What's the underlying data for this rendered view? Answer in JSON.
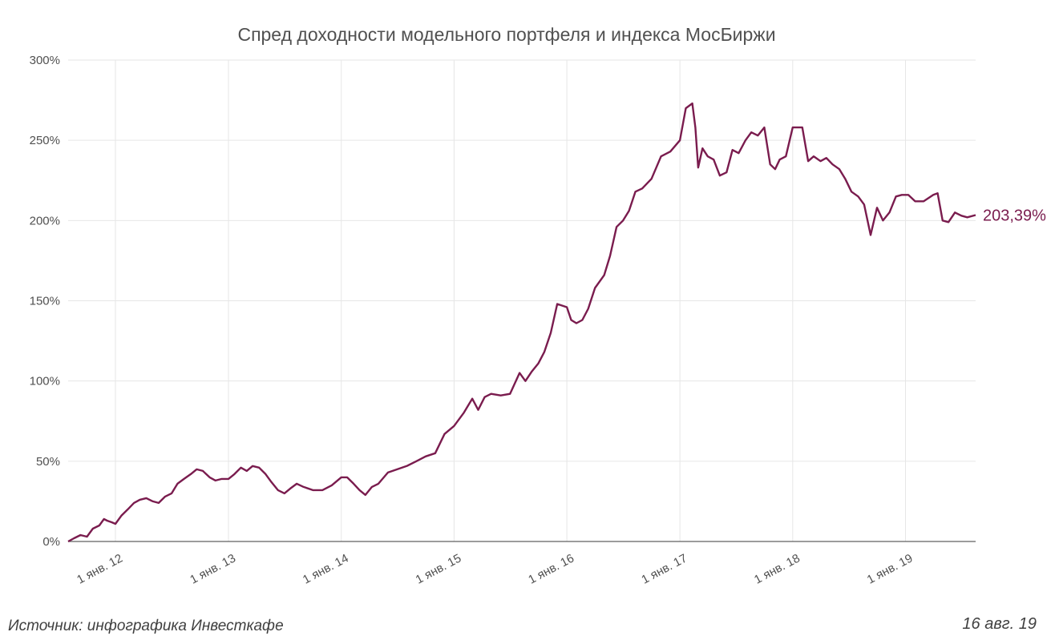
{
  "chart_data": {
    "type": "line",
    "title": "Спред доходности модельного портфеля и индекса МосБиржи",
    "xlabel": "",
    "ylabel": "",
    "x_range": [
      "2011-08-01",
      "2019-08-16"
    ],
    "ylim": [
      0,
      300
    ],
    "y_ticks": [
      0,
      50,
      100,
      150,
      200,
      250,
      300
    ],
    "y_tick_labels": [
      "0%",
      "50%",
      "100%",
      "150%",
      "200%",
      "250%",
      "300%"
    ],
    "x_ticks": [
      "2012-01-01",
      "2013-01-01",
      "2014-01-01",
      "2015-01-01",
      "2016-01-01",
      "2017-01-01",
      "2018-01-01",
      "2019-01-01"
    ],
    "x_tick_labels": [
      "1 янв. 12",
      "1 янв. 13",
      "1 янв. 14",
      "1 янв. 15",
      "1 янв. 16",
      "1 янв. 17",
      "1 янв. 18",
      "1 янв. 19"
    ],
    "grid": true,
    "series_color": "#7a1c4e",
    "last_value_label": "203,39%",
    "series": [
      {
        "x": [
          "2011-08-01",
          "2011-08-20",
          "2011-09-10",
          "2011-10-01",
          "2011-10-20",
          "2011-11-10",
          "2011-11-25",
          "2011-12-05",
          "2011-12-20",
          "2012-01-01",
          "2012-01-20",
          "2012-02-10",
          "2012-03-01",
          "2012-03-20",
          "2012-04-10",
          "2012-05-01",
          "2012-05-20",
          "2012-06-10",
          "2012-07-01",
          "2012-07-20",
          "2012-08-10",
          "2012-09-01",
          "2012-09-20",
          "2012-10-10",
          "2012-11-01",
          "2012-11-20",
          "2012-12-10",
          "2013-01-01",
          "2013-01-20",
          "2013-02-10",
          "2013-03-01",
          "2013-03-20",
          "2013-04-10",
          "2013-05-01",
          "2013-05-20",
          "2013-06-10",
          "2013-07-01",
          "2013-07-20",
          "2013-08-10",
          "2013-09-01",
          "2013-10-01",
          "2013-11-01",
          "2013-12-01",
          "2014-01-01",
          "2014-01-20",
          "2014-02-10",
          "2014-03-01",
          "2014-03-20",
          "2014-04-10",
          "2014-05-01",
          "2014-06-01",
          "2014-07-01",
          "2014-08-01",
          "2014-09-01",
          "2014-10-01",
          "2014-11-01",
          "2014-12-01",
          "2015-01-01",
          "2015-02-01",
          "2015-03-01",
          "2015-03-20",
          "2015-04-10",
          "2015-05-01",
          "2015-06-01",
          "2015-07-01",
          "2015-08-01",
          "2015-08-20",
          "2015-09-10",
          "2015-10-01",
          "2015-10-20",
          "2015-11-10",
          "2015-12-01",
          "2016-01-01",
          "2016-01-15",
          "2016-02-01",
          "2016-02-20",
          "2016-03-10",
          "2016-04-01",
          "2016-05-01",
          "2016-05-20",
          "2016-06-10",
          "2016-07-01",
          "2016-07-20",
          "2016-08-10",
          "2016-09-01",
          "2016-10-01",
          "2016-11-01",
          "2016-12-01",
          "2017-01-01",
          "2017-01-20",
          "2017-02-10",
          "2017-02-20",
          "2017-03-01",
          "2017-03-15",
          "2017-04-01",
          "2017-04-20",
          "2017-05-10",
          "2017-06-01",
          "2017-06-20",
          "2017-07-10",
          "2017-08-01",
          "2017-08-20",
          "2017-09-10",
          "2017-10-01",
          "2017-10-20",
          "2017-11-05",
          "2017-11-20",
          "2017-12-10",
          "2018-01-01",
          "2018-02-01",
          "2018-02-20",
          "2018-03-10",
          "2018-04-01",
          "2018-04-20",
          "2018-05-10",
          "2018-06-01",
          "2018-06-20",
          "2018-07-10",
          "2018-08-01",
          "2018-08-20",
          "2018-09-10",
          "2018-10-01",
          "2018-10-20",
          "2018-11-10",
          "2018-12-01",
          "2018-12-20",
          "2019-01-10",
          "2019-02-01",
          "2019-03-01",
          "2019-04-01",
          "2019-04-15",
          "2019-05-01",
          "2019-05-20",
          "2019-06-10",
          "2019-07-01",
          "2019-07-20",
          "2019-08-16"
        ],
        "y": [
          0,
          2,
          4,
          3,
          8,
          10,
          14,
          13,
          12,
          11,
          16,
          20,
          24,
          26,
          27,
          25,
          24,
          28,
          30,
          36,
          39,
          42,
          45,
          44,
          40,
          38,
          39,
          39,
          42,
          46,
          44,
          47,
          46,
          42,
          37,
          32,
          30,
          33,
          36,
          34,
          32,
          32,
          35,
          40,
          40,
          36,
          32,
          29,
          34,
          36,
          43,
          45,
          47,
          50,
          53,
          55,
          67,
          72,
          80,
          89,
          82,
          90,
          92,
          91,
          92,
          105,
          100,
          106,
          111,
          118,
          130,
          148,
          146,
          138,
          136,
          138,
          145,
          158,
          166,
          178,
          196,
          200,
          206,
          218,
          220,
          226,
          240,
          243,
          250,
          270,
          273,
          258,
          233,
          245,
          240,
          238,
          228,
          230,
          244,
          242,
          250,
          255,
          253,
          258,
          235,
          232,
          238,
          240,
          258,
          258,
          237,
          240,
          237,
          239,
          235,
          232,
          226,
          218,
          215,
          210,
          191,
          208,
          200,
          205,
          215,
          216,
          216,
          212,
          212,
          216,
          217,
          200,
          199,
          205,
          203,
          202,
          203.39
        ]
      }
    ],
    "source": "Источник: инфографика Инвесткафе",
    "date_stamp": "16 авг. 19"
  }
}
